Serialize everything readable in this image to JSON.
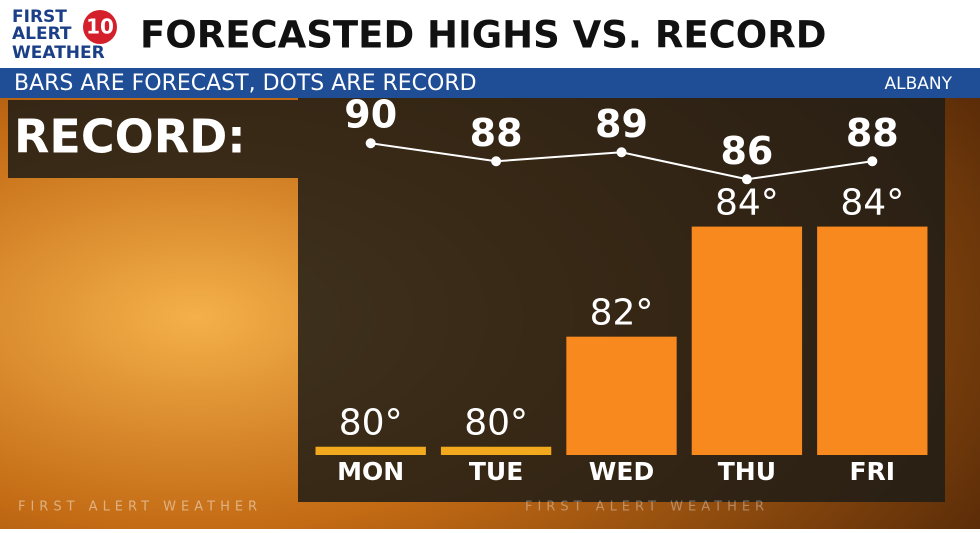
{
  "logo": {
    "line1": "FIRST",
    "line2": "ALERT",
    "line3": "WEATHER",
    "channel": "10"
  },
  "chart_data": {
    "type": "bar",
    "title": "FORECASTED HIGHS VS. RECORD",
    "subtitle": "BARS ARE FORECAST, DOTS ARE RECORD",
    "location": "ALBANY",
    "watermark": "FIRST ALERT WEATHER",
    "categories": [
      "MON",
      "TUE",
      "WED",
      "THU",
      "FRI"
    ],
    "values": [
      80,
      80,
      82,
      84,
      84
    ],
    "value_labels": [
      "80°",
      "80°",
      "82°",
      "84°",
      "84°"
    ],
    "colors": [
      "#f2a91e",
      "#f2a91e",
      "#f7891f",
      "#f7891f",
      "#f7891f"
    ],
    "ylim": [
      79.85,
      86.3
    ],
    "y2lim": [
      55.4,
      94.8
    ],
    "series": [
      {
        "name": "RECORD:",
        "type": "line",
        "axis": "y2",
        "color": "#ffffff",
        "values": [
          90,
          88,
          89,
          86,
          88
        ]
      }
    ]
  }
}
